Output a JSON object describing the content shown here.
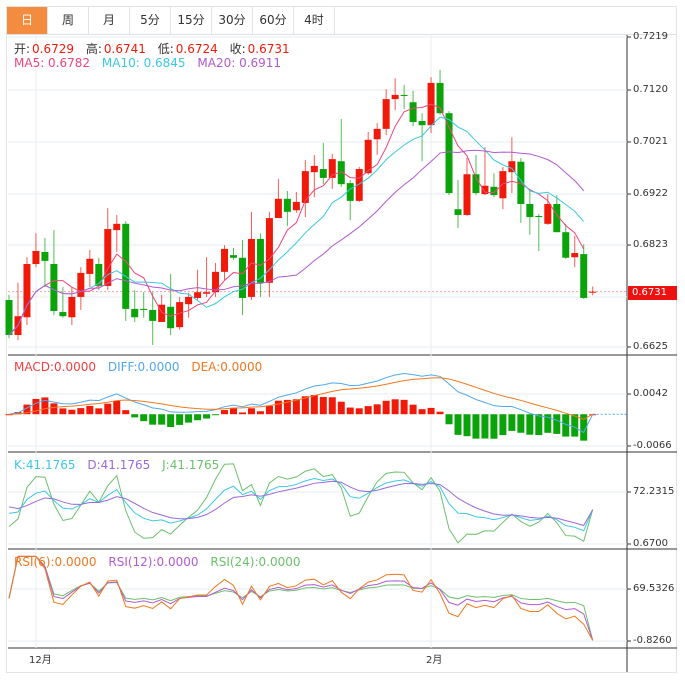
{
  "tabs": [
    {
      "label": "日",
      "active": true
    },
    {
      "label": "周"
    },
    {
      "label": "月"
    },
    {
      "label": "5分"
    },
    {
      "label": "15分"
    },
    {
      "label": "30分"
    },
    {
      "label": "60分"
    },
    {
      "label": "4时"
    }
  ],
  "ohlc_header": {
    "open_label": "开:",
    "open": "0.6729",
    "high_label": "高:",
    "high": "0.6741",
    "low_label": "低:",
    "low": "0.6724",
    "close_label": "收:",
    "close": "0.6731"
  },
  "ma_header": {
    "ma5": "MA5: 0.6782",
    "ma10": "MA10: 0.6845",
    "ma20": "MA20: 0.6911"
  },
  "macd_header": {
    "macd": "MACD:0.0000",
    "diff": "DIFF:0.0000",
    "dea": "DEA:0.0000"
  },
  "kdj_header": {
    "k": "K:41.1765",
    "d": "D:41.1765",
    "j": "J:41.1765"
  },
  "rsi_header": {
    "rsi6": "RSI(6):0.0000",
    "rsi12": "RSI(12):0.0000",
    "rsi24": "RSI(24):0.0000"
  },
  "colors": {
    "up": "#f01a0a",
    "down": "#0aa30a",
    "ma5": "#f0467a",
    "ma10": "#3cc8e0",
    "ma20": "#b25ad0",
    "dea": "#f07820",
    "diff": "#52a8ec",
    "rsi6": "#f07820",
    "rsi12": "#b25ad0",
    "rsi24": "#6cc06c",
    "active_tab": "#f38c3e"
  },
  "chart_data": {
    "type": "candlestick",
    "price_axis": {
      "ticks": [
        "0.7219",
        "0.7120",
        "0.7021",
        "0.6922",
        "0.6823",
        "0.6625"
      ],
      "range": [
        0.6625,
        0.7219
      ]
    },
    "last_price": "0.6731",
    "macd_axis": {
      "ticks": [
        "0.0042",
        "-0.0066"
      ],
      "range": [
        -0.0066,
        0.0042
      ]
    },
    "kdj_axis": {
      "ticks": [
        "72.2315",
        "0.6700"
      ],
      "range": [
        0.67,
        72.2315
      ]
    },
    "rsi_axis": {
      "ticks": [
        "69.5326",
        "-0.8260"
      ],
      "range": [
        -0.826,
        69.5326
      ]
    },
    "x_labels": [
      {
        "label": "12月",
        "index": 3
      },
      {
        "label": "2月",
        "index": 47
      }
    ],
    "candles": [
      [
        0.6715,
        0.6725,
        0.6642,
        0.6648
      ],
      [
        0.6648,
        0.6748,
        0.6638,
        0.6684
      ],
      [
        0.6682,
        0.6797,
        0.6667,
        0.6784
      ],
      [
        0.6784,
        0.6843,
        0.6778,
        0.6809
      ],
      [
        0.6807,
        0.6834,
        0.674,
        0.679
      ],
      [
        0.6784,
        0.6849,
        0.6686,
        0.6694
      ],
      [
        0.6692,
        0.674,
        0.6681,
        0.6684
      ],
      [
        0.6682,
        0.674,
        0.6667,
        0.6721
      ],
      [
        0.6721,
        0.6778,
        0.6696,
        0.6767
      ],
      [
        0.6765,
        0.6811,
        0.674,
        0.6794
      ],
      [
        0.6784,
        0.6796,
        0.6734,
        0.6742
      ],
      [
        0.6742,
        0.6891,
        0.6734,
        0.6851
      ],
      [
        0.6849,
        0.6878,
        0.6807,
        0.6861
      ],
      [
        0.6861,
        0.6866,
        0.6675,
        0.6698
      ],
      [
        0.6698,
        0.6734,
        0.6673,
        0.6682
      ],
      [
        0.6698,
        0.673,
        0.6681,
        0.6696
      ],
      [
        0.6696,
        0.673,
        0.6629,
        0.6675
      ],
      [
        0.6673,
        0.6725,
        0.6673,
        0.6706
      ],
      [
        0.6702,
        0.6765,
        0.6648,
        0.6661
      ],
      [
        0.6663,
        0.6721,
        0.6658,
        0.6711
      ],
      [
        0.6707,
        0.6729,
        0.6681,
        0.6721
      ],
      [
        0.6719,
        0.6773,
        0.6715,
        0.673
      ],
      [
        0.6727,
        0.6797,
        0.6721,
        0.673
      ],
      [
        0.673,
        0.6786,
        0.6721,
        0.6769
      ],
      [
        0.6769,
        0.682,
        0.6753,
        0.6813
      ],
      [
        0.6801,
        0.6815,
        0.6792,
        0.6796
      ],
      [
        0.6796,
        0.683,
        0.6686,
        0.6719
      ],
      [
        0.6721,
        0.6884,
        0.6715,
        0.6832
      ],
      [
        0.6832,
        0.6843,
        0.6721,
        0.6748
      ],
      [
        0.6748,
        0.6884,
        0.6721,
        0.6872
      ],
      [
        0.6872,
        0.6947,
        0.6872,
        0.6909
      ],
      [
        0.6909,
        0.6924,
        0.6857,
        0.6884
      ],
      [
        0.6887,
        0.6922,
        0.6882,
        0.6903
      ],
      [
        0.6901,
        0.6983,
        0.6874,
        0.6962
      ],
      [
        0.696,
        0.6993,
        0.6912,
        0.6972
      ],
      [
        0.6966,
        0.7016,
        0.6937,
        0.6949
      ],
      [
        0.6949,
        0.6995,
        0.6928,
        0.6985
      ],
      [
        0.6981,
        0.7062,
        0.6932,
        0.6937
      ],
      [
        0.6939,
        0.6945,
        0.6868,
        0.6905
      ],
      [
        0.6905,
        0.697,
        0.6903,
        0.6966
      ],
      [
        0.6958,
        0.7037,
        0.6955,
        0.7022
      ],
      [
        0.7023,
        0.7054,
        0.6993,
        0.7043
      ],
      [
        0.7043,
        0.7119,
        0.7031,
        0.71
      ],
      [
        0.71,
        0.714,
        0.7079,
        0.7108
      ],
      [
        0.7108,
        0.7127,
        0.7081,
        0.7106
      ],
      [
        0.7094,
        0.7116,
        0.7048,
        0.7056
      ],
      [
        0.7058,
        0.7073,
        0.6981,
        0.705
      ],
      [
        0.705,
        0.7142,
        0.7035,
        0.7131
      ],
      [
        0.7131,
        0.7156,
        0.707,
        0.7073
      ],
      [
        0.7073,
        0.7077,
        0.6916,
        0.692
      ],
      [
        0.6889,
        0.6945,
        0.6853,
        0.6878
      ],
      [
        0.6878,
        0.6987,
        0.6876,
        0.6956
      ],
      [
        0.6956,
        0.6993,
        0.6916,
        0.692
      ],
      [
        0.6918,
        0.7008,
        0.6916,
        0.6934
      ],
      [
        0.6932,
        0.6958,
        0.6912,
        0.6916
      ],
      [
        0.691,
        0.697,
        0.6889,
        0.6962
      ],
      [
        0.696,
        0.7027,
        0.692,
        0.6981
      ],
      [
        0.698,
        0.6987,
        0.6863,
        0.6899
      ],
      [
        0.6899,
        0.6926,
        0.684,
        0.6874
      ],
      [
        0.6876,
        0.688,
        0.6809,
        0.6874
      ],
      [
        0.6861,
        0.6918,
        0.6859,
        0.6899
      ],
      [
        0.6899,
        0.6916,
        0.6845,
        0.6845
      ],
      [
        0.6845,
        0.6861,
        0.6794,
        0.6796
      ],
      [
        0.6797,
        0.6838,
        0.6778,
        0.6805
      ],
      [
        0.6803,
        0.6822,
        0.6717,
        0.6719
      ],
      [
        0.6729,
        0.6741,
        0.6724,
        0.6731
      ]
    ]
  }
}
